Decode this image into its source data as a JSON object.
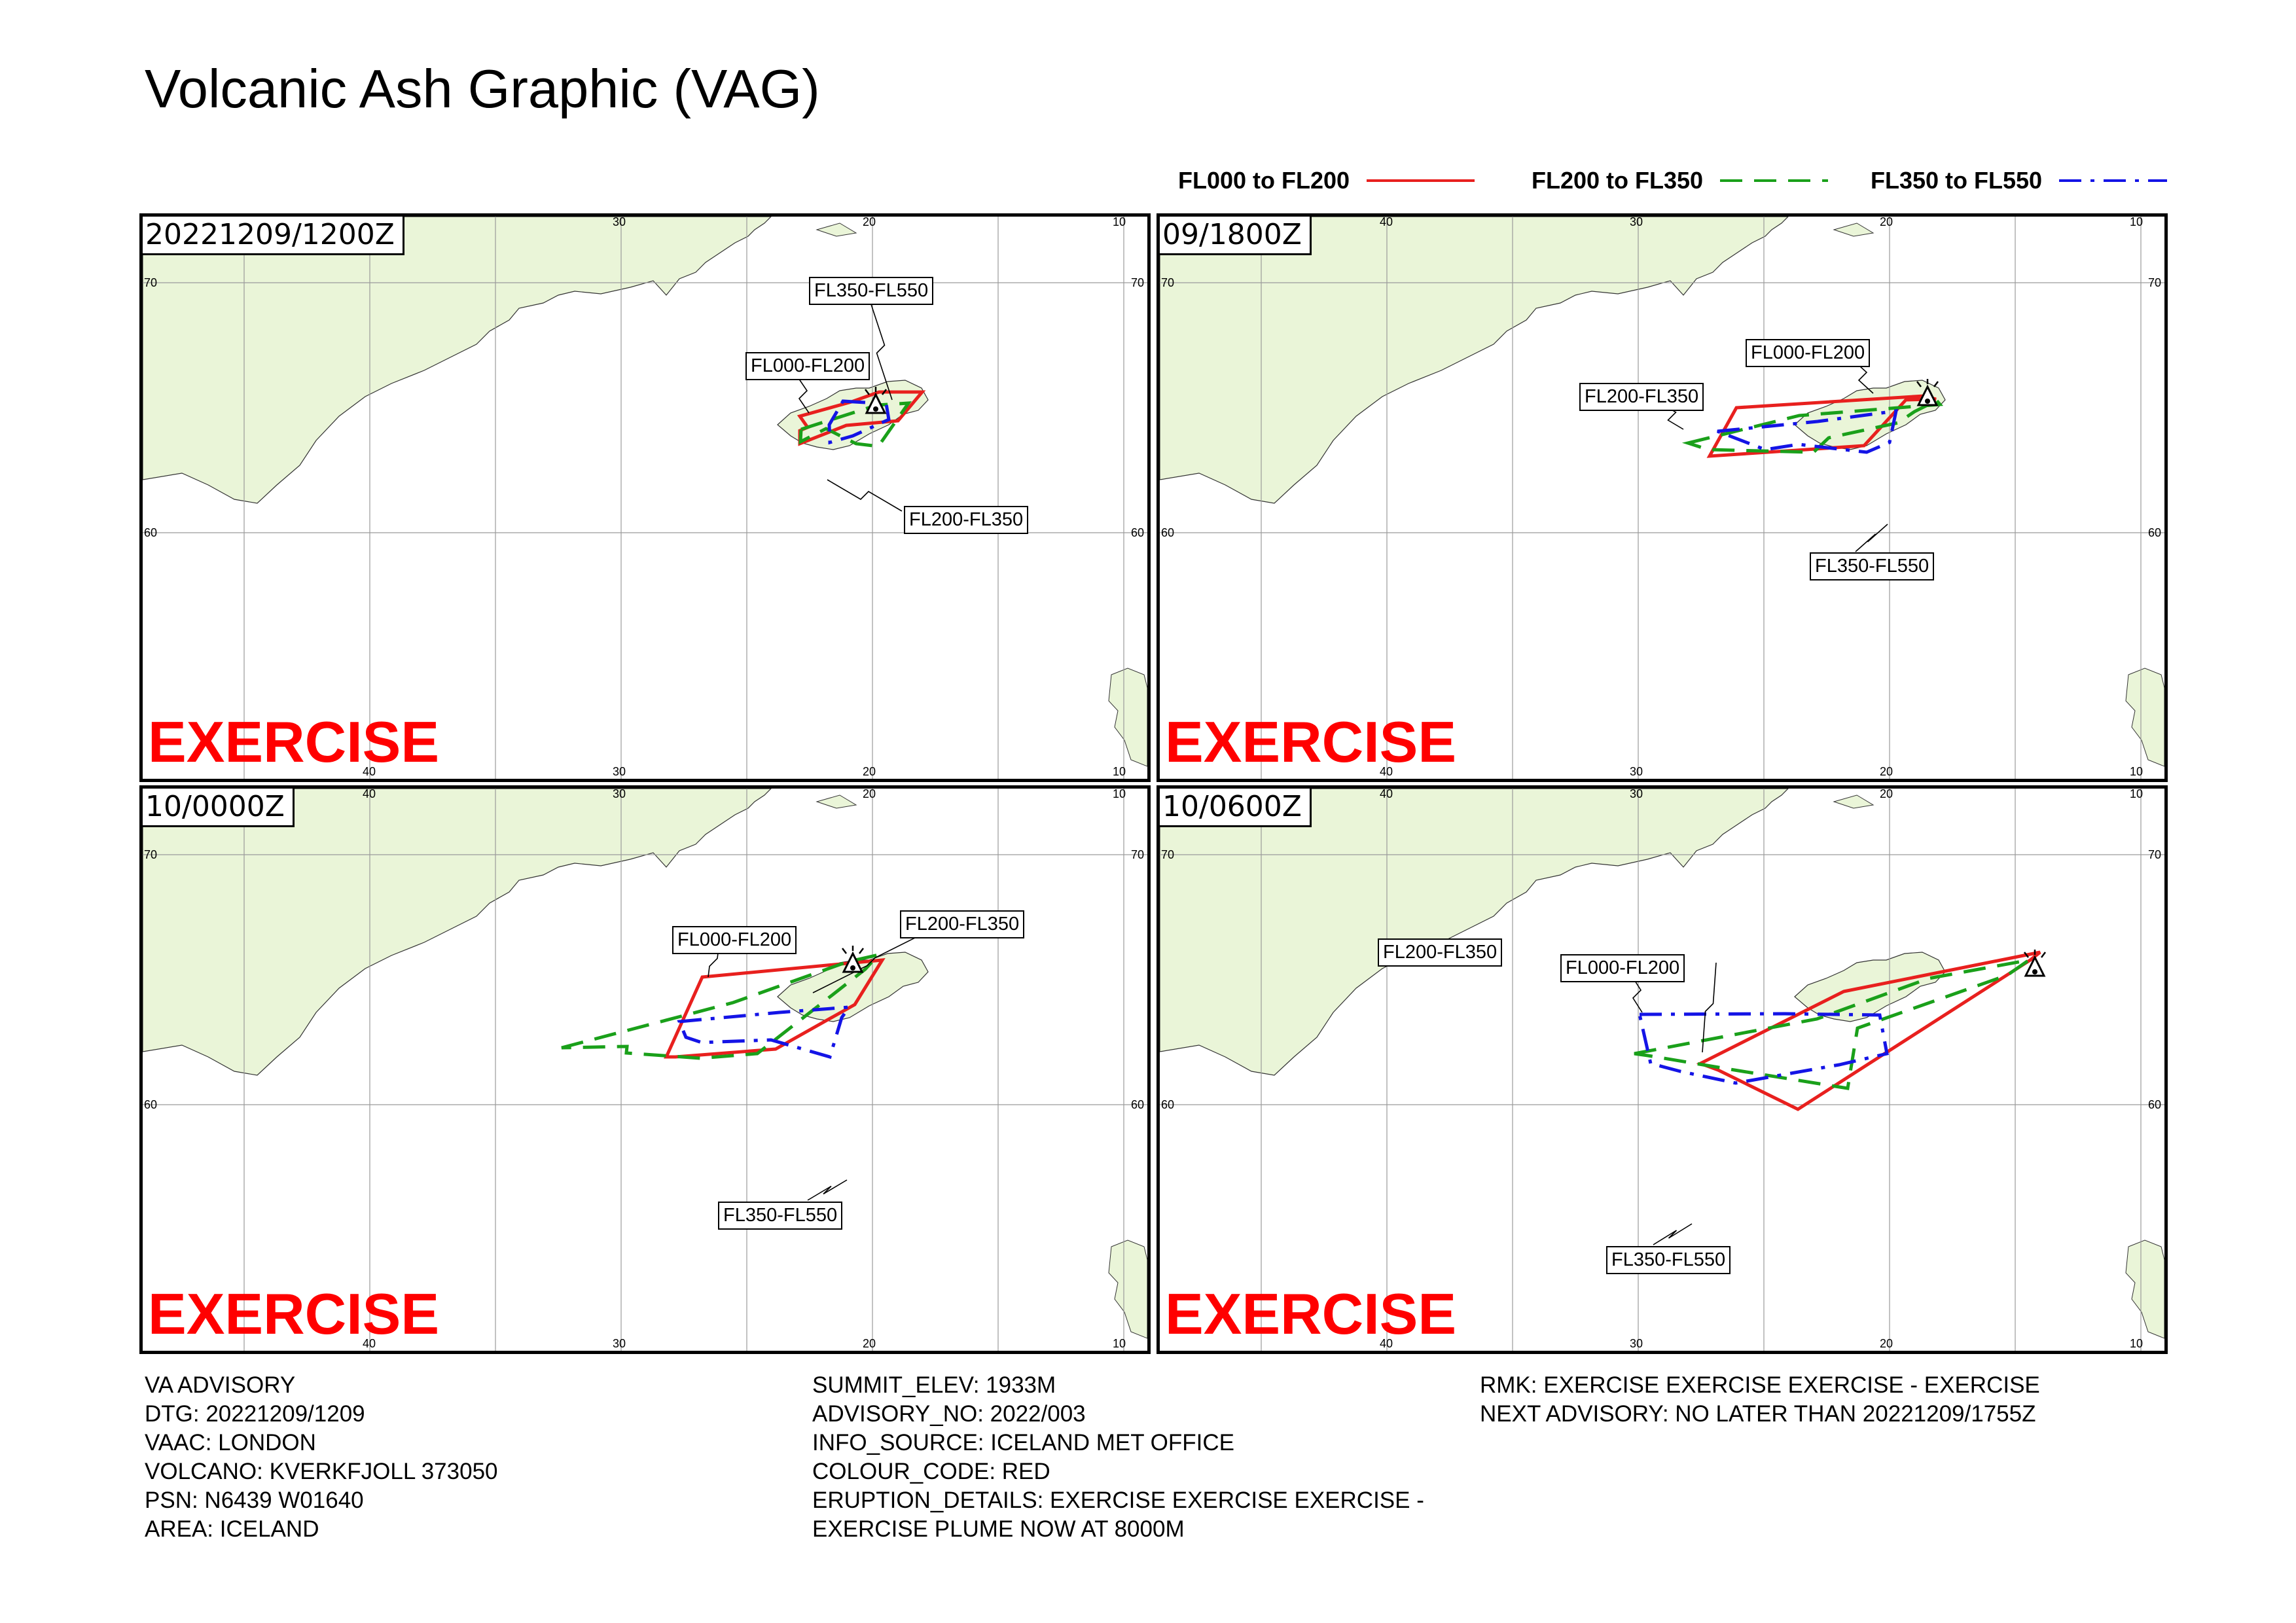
{
  "title": "Volcanic Ash Graphic (VAG)",
  "legend": [
    {
      "label": "FL000 to FL200",
      "color": "#e8201e",
      "dash": "solid"
    },
    {
      "label": "FL200 to FL350",
      "color": "#1aa01a",
      "dash": "dashed"
    },
    {
      "label": "FL350 to FL550",
      "color": "#1414e6",
      "dash": "dashdot"
    }
  ],
  "colors": {
    "land": "#eaf5d8",
    "fl000_fl200": "#e8201e",
    "fl200_fl350": "#1aa01a",
    "fl350_fl550": "#1414e6",
    "exercise": "#ff0000"
  },
  "map_ticks": {
    "lon_top": [
      "40",
      "30",
      "20",
      "10"
    ],
    "lon_bottom": [
      "40",
      "30",
      "20",
      "10"
    ],
    "lat_left": [
      "70",
      "60"
    ],
    "lat_right": [
      "70",
      "60"
    ]
  },
  "panels": [
    {
      "time": "20221209/1200Z",
      "watermark": "EXERCISE",
      "callouts": [
        "FL350-FL550",
        "FL000-FL200",
        "FL200-FL350"
      ]
    },
    {
      "time": "09/1800Z",
      "watermark": "EXERCISE",
      "callouts": [
        "FL000-FL200",
        "FL200-FL350",
        "FL350-FL550"
      ]
    },
    {
      "time": "10/0000Z",
      "watermark": "EXERCISE",
      "callouts": [
        "FL000-FL200",
        "FL200-FL350",
        "FL350-FL550"
      ]
    },
    {
      "time": "10/0600Z",
      "watermark": "EXERCISE",
      "callouts": [
        "FL200-FL350",
        "FL000-FL200",
        "FL350-FL550"
      ]
    }
  ],
  "advisory": {
    "col1": [
      "VA ADVISORY",
      "DTG: 20221209/1209",
      "VAAC: LONDON",
      "VOLCANO: KVERKFJOLL 373050",
      "PSN: N6439 W01640",
      "AREA: ICELAND"
    ],
    "col2": [
      "SUMMIT_ELEV: 1933M",
      "ADVISORY_NO: 2022/003",
      "INFO_SOURCE: ICELAND MET OFFICE",
      "COLOUR_CODE: RED",
      "ERUPTION_DETAILS: EXERCISE EXERCISE EXERCISE -",
      "EXERCISE PLUME NOW AT 8000M"
    ],
    "col3": [
      "RMK: EXERCISE EXERCISE EXERCISE - EXERCISE",
      "NEXT ADVISORY: NO LATER THAN 20221209/1755Z"
    ]
  }
}
